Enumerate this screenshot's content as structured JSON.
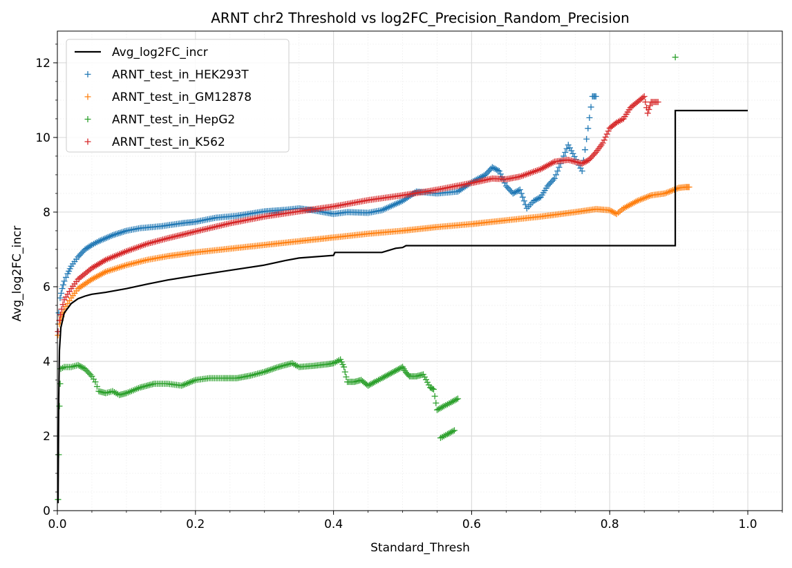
{
  "chart_data": {
    "type": "scatter",
    "title": "ARNT chr2 Threshold vs log2FC_Precision_Random_Precision",
    "xlabel": "Standard_Thresh",
    "ylabel": "Avg_log2FC_incr",
    "xlim": [
      0.0,
      1.05
    ],
    "ylim": [
      0,
      12.85
    ],
    "xticks": [
      "0.0",
      "0.2",
      "0.4",
      "0.6",
      "0.8",
      "1.0"
    ],
    "yticks": [
      "0",
      "2",
      "4",
      "6",
      "8",
      "10",
      "12"
    ],
    "grid": true,
    "minor_grid": true,
    "legend_position": "top-left",
    "series": [
      {
        "name": "Avg_log2FC_incr",
        "kind": "line",
        "color": "#000000",
        "points": [
          [
            0.001,
            0.2
          ],
          [
            0.002,
            3.0
          ],
          [
            0.003,
            4.3
          ],
          [
            0.005,
            4.9
          ],
          [
            0.01,
            5.3
          ],
          [
            0.02,
            5.55
          ],
          [
            0.03,
            5.68
          ],
          [
            0.04,
            5.75
          ],
          [
            0.05,
            5.8
          ],
          [
            0.07,
            5.85
          ],
          [
            0.1,
            5.95
          ],
          [
            0.13,
            6.07
          ],
          [
            0.16,
            6.18
          ],
          [
            0.2,
            6.3
          ],
          [
            0.25,
            6.44
          ],
          [
            0.3,
            6.58
          ],
          [
            0.33,
            6.7
          ],
          [
            0.35,
            6.77
          ],
          [
            0.4,
            6.84
          ],
          [
            0.402,
            6.92
          ],
          [
            0.47,
            6.92
          ],
          [
            0.49,
            7.03
          ],
          [
            0.5,
            7.05
          ],
          [
            0.505,
            7.1
          ],
          [
            0.895,
            7.1
          ],
          [
            0.895,
            10.72
          ],
          [
            1.0,
            10.72
          ]
        ]
      },
      {
        "name": "ARNT_test_in_HEK293T",
        "kind": "markers",
        "color": "#1f77b4",
        "points": [
          [
            0.001,
            4.8
          ],
          [
            0.002,
            5.3
          ],
          [
            0.004,
            5.7
          ],
          [
            0.007,
            5.95
          ],
          [
            0.01,
            6.15
          ],
          [
            0.015,
            6.35
          ],
          [
            0.02,
            6.55
          ],
          [
            0.03,
            6.8
          ],
          [
            0.04,
            7.0
          ],
          [
            0.05,
            7.12
          ],
          [
            0.06,
            7.22
          ],
          [
            0.08,
            7.38
          ],
          [
            0.1,
            7.5
          ],
          [
            0.12,
            7.57
          ],
          [
            0.15,
            7.62
          ],
          [
            0.18,
            7.7
          ],
          [
            0.2,
            7.74
          ],
          [
            0.23,
            7.85
          ],
          [
            0.26,
            7.9
          ],
          [
            0.3,
            8.02
          ],
          [
            0.33,
            8.06
          ],
          [
            0.35,
            8.1
          ],
          [
            0.37,
            8.05
          ],
          [
            0.4,
            7.95
          ],
          [
            0.42,
            8.0
          ],
          [
            0.45,
            7.98
          ],
          [
            0.47,
            8.05
          ],
          [
            0.5,
            8.3
          ],
          [
            0.52,
            8.55
          ],
          [
            0.55,
            8.5
          ],
          [
            0.58,
            8.55
          ],
          [
            0.6,
            8.8
          ],
          [
            0.62,
            9.0
          ],
          [
            0.63,
            9.2
          ],
          [
            0.64,
            9.1
          ],
          [
            0.65,
            8.7
          ],
          [
            0.66,
            8.5
          ],
          [
            0.67,
            8.6
          ],
          [
            0.68,
            8.1
          ],
          [
            0.69,
            8.3
          ],
          [
            0.7,
            8.4
          ],
          [
            0.71,
            8.7
          ],
          [
            0.72,
            8.9
          ],
          [
            0.74,
            9.8
          ],
          [
            0.76,
            9.1
          ],
          [
            0.775,
            11.1
          ],
          [
            0.78,
            11.1
          ]
        ]
      },
      {
        "name": "ARNT_test_in_GM12878",
        "kind": "markers",
        "color": "#ff7f0e",
        "points": [
          [
            0.001,
            4.7
          ],
          [
            0.003,
            5.0
          ],
          [
            0.006,
            5.2
          ],
          [
            0.01,
            5.4
          ],
          [
            0.02,
            5.7
          ],
          [
            0.03,
            5.95
          ],
          [
            0.05,
            6.2
          ],
          [
            0.07,
            6.4
          ],
          [
            0.1,
            6.58
          ],
          [
            0.13,
            6.72
          ],
          [
            0.16,
            6.82
          ],
          [
            0.2,
            6.92
          ],
          [
            0.25,
            7.02
          ],
          [
            0.3,
            7.12
          ],
          [
            0.35,
            7.22
          ],
          [
            0.4,
            7.32
          ],
          [
            0.45,
            7.42
          ],
          [
            0.5,
            7.5
          ],
          [
            0.55,
            7.6
          ],
          [
            0.6,
            7.68
          ],
          [
            0.65,
            7.78
          ],
          [
            0.7,
            7.88
          ],
          [
            0.75,
            8.0
          ],
          [
            0.78,
            8.08
          ],
          [
            0.8,
            8.05
          ],
          [
            0.81,
            7.95
          ],
          [
            0.82,
            8.1
          ],
          [
            0.84,
            8.3
          ],
          [
            0.86,
            8.45
          ],
          [
            0.88,
            8.5
          ],
          [
            0.9,
            8.65
          ],
          [
            0.91,
            8.67
          ],
          [
            0.915,
            8.67
          ]
        ]
      },
      {
        "name": "ARNT_test_in_HepG2",
        "kind": "markers",
        "color": "#2ca02c",
        "points": [
          [
            0.001,
            0.3
          ],
          [
            0.002,
            1.5
          ],
          [
            0.003,
            2.8
          ],
          [
            0.004,
            3.4
          ],
          [
            0.005,
            3.8
          ],
          [
            0.01,
            3.85
          ],
          [
            0.02,
            3.85
          ],
          [
            0.03,
            3.9
          ],
          [
            0.04,
            3.8
          ],
          [
            0.05,
            3.6
          ],
          [
            0.055,
            3.45
          ],
          [
            0.06,
            3.2
          ],
          [
            0.07,
            3.15
          ],
          [
            0.08,
            3.2
          ],
          [
            0.09,
            3.1
          ],
          [
            0.1,
            3.15
          ],
          [
            0.12,
            3.3
          ],
          [
            0.14,
            3.4
          ],
          [
            0.16,
            3.4
          ],
          [
            0.18,
            3.35
          ],
          [
            0.2,
            3.5
          ],
          [
            0.22,
            3.55
          ],
          [
            0.24,
            3.55
          ],
          [
            0.26,
            3.55
          ],
          [
            0.28,
            3.62
          ],
          [
            0.3,
            3.72
          ],
          [
            0.32,
            3.85
          ],
          [
            0.34,
            3.95
          ],
          [
            0.35,
            3.85
          ],
          [
            0.37,
            3.88
          ],
          [
            0.39,
            3.92
          ],
          [
            0.4,
            3.95
          ],
          [
            0.41,
            4.05
          ],
          [
            0.415,
            3.85
          ],
          [
            0.42,
            3.45
          ],
          [
            0.43,
            3.45
          ],
          [
            0.44,
            3.5
          ],
          [
            0.45,
            3.35
          ],
          [
            0.46,
            3.45
          ],
          [
            0.47,
            3.55
          ],
          [
            0.48,
            3.65
          ],
          [
            0.49,
            3.75
          ],
          [
            0.5,
            3.85
          ],
          [
            0.505,
            3.7
          ],
          [
            0.51,
            3.6
          ],
          [
            0.52,
            3.6
          ],
          [
            0.53,
            3.65
          ],
          [
            0.54,
            3.3
          ],
          [
            0.545,
            3.25
          ],
          [
            0.55,
            2.7
          ],
          [
            0.56,
            2.8
          ],
          [
            0.57,
            2.9
          ],
          [
            0.58,
            3.0
          ],
          [
            0.555,
            1.95
          ],
          [
            0.565,
            2.05
          ],
          [
            0.575,
            2.15
          ],
          [
            0.895,
            12.15
          ]
        ]
      },
      {
        "name": "ARNT_test_in_K562",
        "kind": "markers",
        "color": "#d62728",
        "points": [
          [
            0.001,
            4.8
          ],
          [
            0.003,
            5.1
          ],
          [
            0.006,
            5.4
          ],
          [
            0.01,
            5.65
          ],
          [
            0.02,
            5.95
          ],
          [
            0.03,
            6.2
          ],
          [
            0.05,
            6.5
          ],
          [
            0.07,
            6.72
          ],
          [
            0.1,
            6.95
          ],
          [
            0.13,
            7.15
          ],
          [
            0.16,
            7.3
          ],
          [
            0.2,
            7.48
          ],
          [
            0.25,
            7.7
          ],
          [
            0.3,
            7.88
          ],
          [
            0.35,
            8.02
          ],
          [
            0.4,
            8.15
          ],
          [
            0.45,
            8.32
          ],
          [
            0.5,
            8.45
          ],
          [
            0.55,
            8.6
          ],
          [
            0.6,
            8.78
          ],
          [
            0.63,
            8.9
          ],
          [
            0.65,
            8.88
          ],
          [
            0.67,
            8.95
          ],
          [
            0.7,
            9.15
          ],
          [
            0.72,
            9.35
          ],
          [
            0.74,
            9.4
          ],
          [
            0.76,
            9.3
          ],
          [
            0.77,
            9.4
          ],
          [
            0.78,
            9.6
          ],
          [
            0.79,
            9.85
          ],
          [
            0.8,
            10.25
          ],
          [
            0.81,
            10.4
          ],
          [
            0.82,
            10.5
          ],
          [
            0.83,
            10.8
          ],
          [
            0.84,
            10.95
          ],
          [
            0.85,
            11.1
          ],
          [
            0.855,
            10.65
          ],
          [
            0.86,
            10.95
          ],
          [
            0.87,
            10.95
          ]
        ]
      }
    ]
  }
}
